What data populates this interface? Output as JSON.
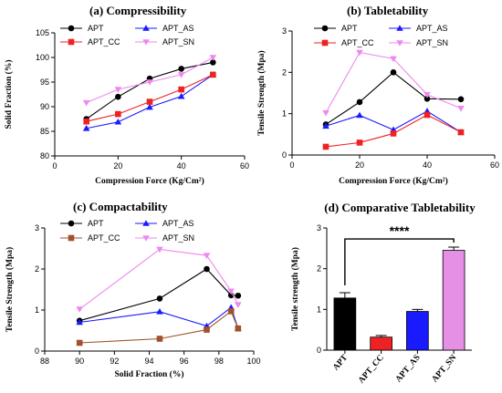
{
  "chart_data": [
    {
      "id": "a",
      "type": "line",
      "title": "(a) Compressibility",
      "xlabel": "Compression Force (Kg/Cm²)",
      "ylabel": "Solid Fraction (%)",
      "xlim": [
        0,
        60
      ],
      "ylim": [
        80,
        105
      ],
      "xticks": [
        0,
        20,
        40,
        60
      ],
      "yticks": [
        80,
        85,
        90,
        95,
        100,
        105
      ],
      "x": [
        10,
        20,
        30,
        40,
        50
      ],
      "series": [
        {
          "name": "APT",
          "color": "#000000",
          "marker": "circle",
          "values": [
            87.5,
            92,
            95.7,
            97.7,
            99
          ]
        },
        {
          "name": "APT_AS",
          "color": "#1a1aff",
          "marker": "triangle-up",
          "values": [
            85.6,
            86.9,
            89.9,
            92.1,
            96.5
          ]
        },
        {
          "name": "APT_CC",
          "color": "#ee2222",
          "marker": "square",
          "values": [
            87,
            88.5,
            91,
            93.5,
            96.5
          ]
        },
        {
          "name": "APT_SN",
          "color": "#ee88ee",
          "marker": "triangle-down",
          "values": [
            90.8,
            93.5,
            95,
            96.5,
            100
          ]
        }
      ],
      "legend": "top-left"
    },
    {
      "id": "b",
      "type": "line",
      "title": "(b) Tabletability",
      "xlabel": "Compression Force (Kg/Cm²)",
      "ylabel": "Tensile Strength (Mpa)",
      "xlim": [
        0,
        60
      ],
      "ylim": [
        0,
        3
      ],
      "xticks": [
        0,
        20,
        40,
        60
      ],
      "yticks": [
        0,
        1,
        2,
        3
      ],
      "x": [
        10,
        20,
        30,
        40,
        50
      ],
      "series": [
        {
          "name": "APT",
          "color": "#000000",
          "marker": "circle",
          "values": [
            0.74,
            1.28,
            2.0,
            1.36,
            1.35
          ]
        },
        {
          "name": "APT_AS",
          "color": "#1a1aff",
          "marker": "triangle-up",
          "values": [
            0.7,
            0.96,
            0.61,
            1.06,
            0.55
          ]
        },
        {
          "name": "APT_CC",
          "color": "#ee2222",
          "marker": "square",
          "values": [
            0.2,
            0.3,
            0.52,
            0.97,
            0.55
          ]
        },
        {
          "name": "APT_SN",
          "color": "#ee88ee",
          "marker": "triangle-down",
          "values": [
            1.02,
            2.48,
            2.33,
            1.46,
            1.13
          ]
        }
      ],
      "legend": "top"
    },
    {
      "id": "c",
      "type": "line",
      "title": "(c) Compactability",
      "xlabel": "Solid Fraction (%)",
      "ylabel": "Tensile Strength (Mpa)",
      "xlim": [
        88,
        100
      ],
      "ylim": [
        0,
        3
      ],
      "xticks": [
        88,
        90,
        92,
        94,
        96,
        98,
        100
      ],
      "yticks": [
        0,
        1,
        2,
        3
      ],
      "series": [
        {
          "name": "APT",
          "color": "#000000",
          "marker": "circle",
          "x": [
            90,
            94.6,
            97.3,
            98.7,
            99.1
          ],
          "values": [
            0.74,
            1.28,
            2.0,
            1.36,
            1.35
          ]
        },
        {
          "name": "APT_AS",
          "color": "#1a1aff",
          "marker": "triangle-up",
          "x": [
            90,
            94.6,
            97.3,
            98.7,
            99.1
          ],
          "values": [
            0.7,
            0.96,
            0.61,
            1.06,
            0.55
          ]
        },
        {
          "name": "APT_CC",
          "color": "#a0522d",
          "marker": "square",
          "x": [
            90,
            94.6,
            97.3,
            98.7,
            99.1
          ],
          "values": [
            0.2,
            0.3,
            0.52,
            0.97,
            0.55
          ]
        },
        {
          "name": "APT_SN",
          "color": "#ee88ee",
          "marker": "triangle-down",
          "x": [
            90,
            94.6,
            97.3,
            98.7,
            99.1
          ],
          "values": [
            1.02,
            2.48,
            2.33,
            1.46,
            1.13
          ]
        }
      ],
      "legend": "top"
    },
    {
      "id": "d",
      "type": "bar",
      "title": "(d) Comparative Tabletability",
      "xlabel": "",
      "ylabel": "Tensile strength (Mpa)",
      "ylim": [
        0,
        3
      ],
      "yticks": [
        0,
        1,
        2,
        3
      ],
      "categories": [
        "APT",
        "APT_CC",
        "APT_AS",
        "APT_SN"
      ],
      "values": [
        1.28,
        0.32,
        0.95,
        2.45
      ],
      "errors": [
        0.13,
        0.04,
        0.05,
        0.08
      ],
      "colors": [
        "#000000",
        "#ee2222",
        "#1a1aff",
        "#e58fe5"
      ],
      "significance": {
        "label": "****",
        "from": "APT",
        "to": "APT_SN"
      }
    }
  ]
}
